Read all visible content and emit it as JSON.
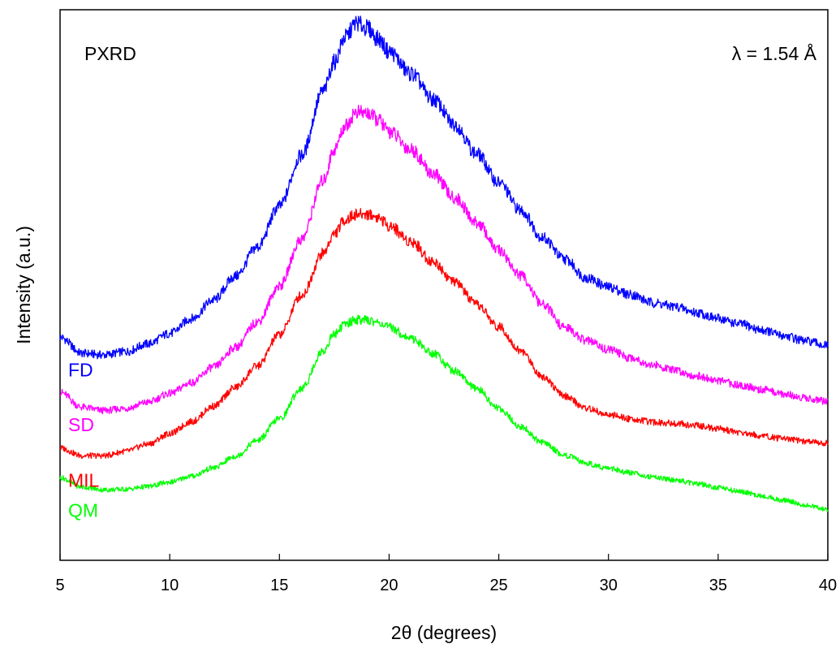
{
  "chart_data": {
    "type": "line",
    "xlabel": "2θ (degrees)",
    "ylabel": "Intensity (a.u.)",
    "xlim": [
      5,
      40
    ],
    "ylim": [
      0,
      100
    ],
    "x_ticks": [
      5,
      10,
      15,
      20,
      25,
      30,
      35,
      40
    ],
    "y_ticks_shown": false,
    "grid": false,
    "annotations": {
      "top_left": "PXRD",
      "top_right": "λ = 1.54 Å"
    },
    "series": [
      {
        "name": "FD",
        "color": "#0000ff",
        "x": [
          5,
          6,
          7,
          8,
          9,
          10,
          11,
          12,
          13,
          14,
          15,
          16,
          17,
          17.5,
          18,
          18.5,
          19,
          19.5,
          20,
          21,
          22,
          23,
          24,
          25,
          26,
          27,
          28,
          29,
          30,
          31,
          32,
          33,
          34,
          35,
          36,
          37,
          38,
          39,
          40
        ],
        "y": [
          40.5,
          37.6,
          37.3,
          37.9,
          39.3,
          41.2,
          43.9,
          47.3,
          51.6,
          56.9,
          64.3,
          73.5,
          85.2,
          90.5,
          95.0,
          97.6,
          96.7,
          94.7,
          92.4,
          88.4,
          83.7,
          79.1,
          73.8,
          68.6,
          63.6,
          58.6,
          54.7,
          51.3,
          49.6,
          48.3,
          46.8,
          46.1,
          45.0,
          43.9,
          42.9,
          41.8,
          40.8,
          39.8,
          39.0
        ]
      },
      {
        "name": "SD",
        "color": "#ff00ff",
        "x": [
          5,
          6,
          7,
          8,
          9,
          10,
          11,
          12,
          13,
          14,
          15,
          16,
          17,
          17.5,
          18,
          18.5,
          19,
          19.5,
          20,
          21,
          22,
          23,
          24,
          25,
          26,
          27,
          28,
          29,
          30,
          31,
          32,
          33,
          34,
          35,
          36,
          37,
          38,
          39,
          40
        ],
        "y": [
          30.5,
          27.8,
          27.2,
          27.6,
          28.7,
          30.3,
          32.3,
          35.1,
          38.7,
          43.3,
          49.8,
          58.3,
          69.0,
          74.6,
          78.9,
          81.4,
          81.2,
          80.0,
          77.9,
          74.6,
          70.2,
          65.8,
          61.3,
          56.3,
          51.7,
          46.4,
          42.3,
          39.9,
          38.3,
          36.8,
          35.5,
          34.5,
          33.5,
          32.6,
          31.8,
          31.0,
          30.2,
          29.5,
          28.8
        ]
      },
      {
        "name": "MIL",
        "color": "#ff0000",
        "x": [
          5,
          6,
          7,
          8,
          9,
          10,
          11,
          12,
          13,
          14,
          15,
          16,
          17,
          17.5,
          18,
          18.5,
          19,
          19.5,
          20,
          21,
          22,
          23,
          24,
          25,
          26,
          27,
          28,
          29,
          30,
          31,
          32,
          33,
          34,
          35,
          36,
          37,
          38,
          39,
          40
        ],
        "y": [
          20.4,
          19.0,
          19.0,
          19.8,
          21.1,
          23.0,
          25.2,
          28.0,
          31.4,
          35.3,
          41.0,
          48.1,
          55.8,
          59.3,
          61.9,
          62.8,
          62.9,
          62.3,
          60.8,
          57.9,
          54.2,
          50.5,
          46.4,
          42.4,
          38.0,
          33.4,
          29.8,
          27.6,
          26.4,
          25.7,
          25.1,
          24.9,
          24.5,
          23.9,
          23.2,
          22.6,
          22.1,
          21.6,
          21.3
        ]
      },
      {
        "name": "QM",
        "color": "#00ff00",
        "x": [
          5,
          6,
          7,
          8,
          9,
          10,
          11,
          12,
          13,
          14,
          15,
          16,
          17,
          17.5,
          18,
          18.5,
          19,
          19.5,
          20,
          21,
          22,
          23,
          24,
          25,
          26,
          27,
          28,
          29,
          30,
          31,
          32,
          33,
          34,
          35,
          36,
          37,
          38,
          39,
          40
        ],
        "y": [
          15.0,
          13.3,
          12.8,
          12.9,
          13.4,
          14.2,
          15.3,
          16.8,
          18.9,
          21.8,
          25.7,
          31.2,
          38.0,
          41.1,
          42.9,
          43.7,
          43.6,
          43.2,
          42.3,
          40.3,
          37.6,
          34.4,
          31.1,
          27.6,
          24.2,
          21.4,
          19.1,
          17.6,
          16.7,
          15.9,
          15.2,
          14.6,
          13.9,
          13.2,
          12.5,
          11.7,
          10.9,
          10.0,
          9.2
        ]
      }
    ]
  }
}
